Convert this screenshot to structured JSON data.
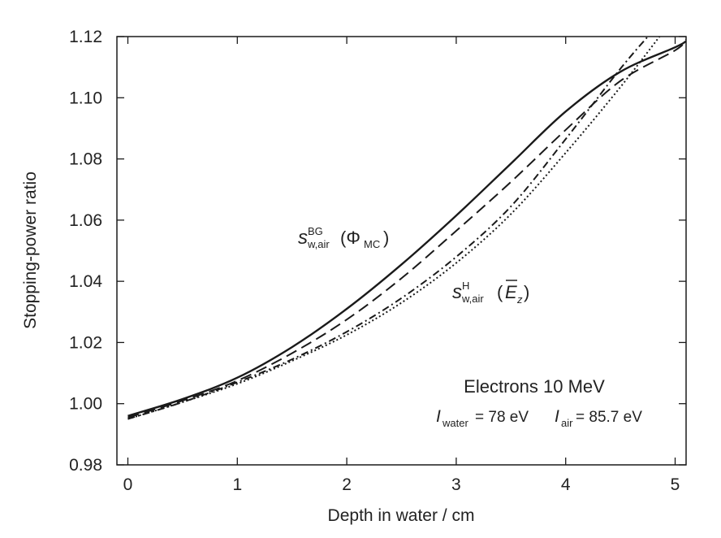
{
  "chart_data": {
    "type": "line",
    "xlabel": "Depth in water / cm",
    "ylabel": "Stopping-power ratio",
    "xlim": [
      -0.1,
      5.1
    ],
    "ylim": [
      0.98,
      1.12
    ],
    "x_ticks": [
      "0",
      "1",
      "2",
      "3",
      "4",
      "5"
    ],
    "y_ticks": [
      "0.98",
      "1.00",
      "1.02",
      "1.04",
      "1.06",
      "1.08",
      "1.10",
      "1.12"
    ],
    "grid": false,
    "series": [
      {
        "style": "solid",
        "x": [
          0,
          0.5,
          1.0,
          1.5,
          2.0,
          2.5,
          3.0,
          3.5,
          4.0,
          4.5,
          5.0,
          5.1
        ],
        "y": [
          0.996,
          1.0015,
          1.0085,
          1.0185,
          1.031,
          1.0455,
          1.0615,
          1.0785,
          1.0955,
          1.1085,
          1.1165,
          1.1185
        ]
      },
      {
        "style": "dashed",
        "x": [
          0,
          0.5,
          1.0,
          1.5,
          2.0,
          2.5,
          3.0,
          3.5,
          4.0,
          4.5,
          5.0,
          5.1
        ],
        "y": [
          0.9955,
          1.001,
          1.0075,
          1.0165,
          1.0275,
          1.041,
          1.0565,
          1.0725,
          1.0895,
          1.1055,
          1.1155,
          1.119
        ]
      },
      {
        "style": "dash-dot",
        "x": [
          0,
          0.5,
          1.0,
          1.5,
          2.0,
          2.5,
          3.0,
          3.5,
          4.0,
          4.5,
          4.8
        ],
        "y": [
          0.995,
          1.0005,
          1.007,
          1.0145,
          1.0235,
          1.0345,
          1.048,
          1.0645,
          1.0865,
          1.1095,
          1.122
        ]
      },
      {
        "style": "dotted",
        "x": [
          0,
          0.5,
          1.0,
          1.5,
          2.0,
          2.5,
          3.0,
          3.5,
          4.0,
          4.5,
          4.9
        ],
        "y": [
          0.995,
          1.0005,
          1.0065,
          1.014,
          1.0225,
          1.033,
          1.046,
          1.062,
          1.082,
          1.1035,
          1.122
        ]
      }
    ],
    "annotations": {
      "label_bg": {
        "s": "s",
        "sup": "BG",
        "sub": "w,air",
        "arg": "(Φ",
        "arg_sub": "MC",
        "close": ")"
      },
      "label_h": {
        "s": "s",
        "sup": "H",
        "sub": "w,air",
        "arg": "(",
        "bar_sym": "E",
        "bar_sub": "z",
        "close": ")"
      },
      "beam": "Electrons 10 MeV",
      "i_water": {
        "sym": "I",
        "sub": "water",
        "val": "= 78 eV"
      },
      "i_air": {
        "sym": "I",
        "sub": "air",
        "val": "= 85.7 eV"
      }
    }
  }
}
